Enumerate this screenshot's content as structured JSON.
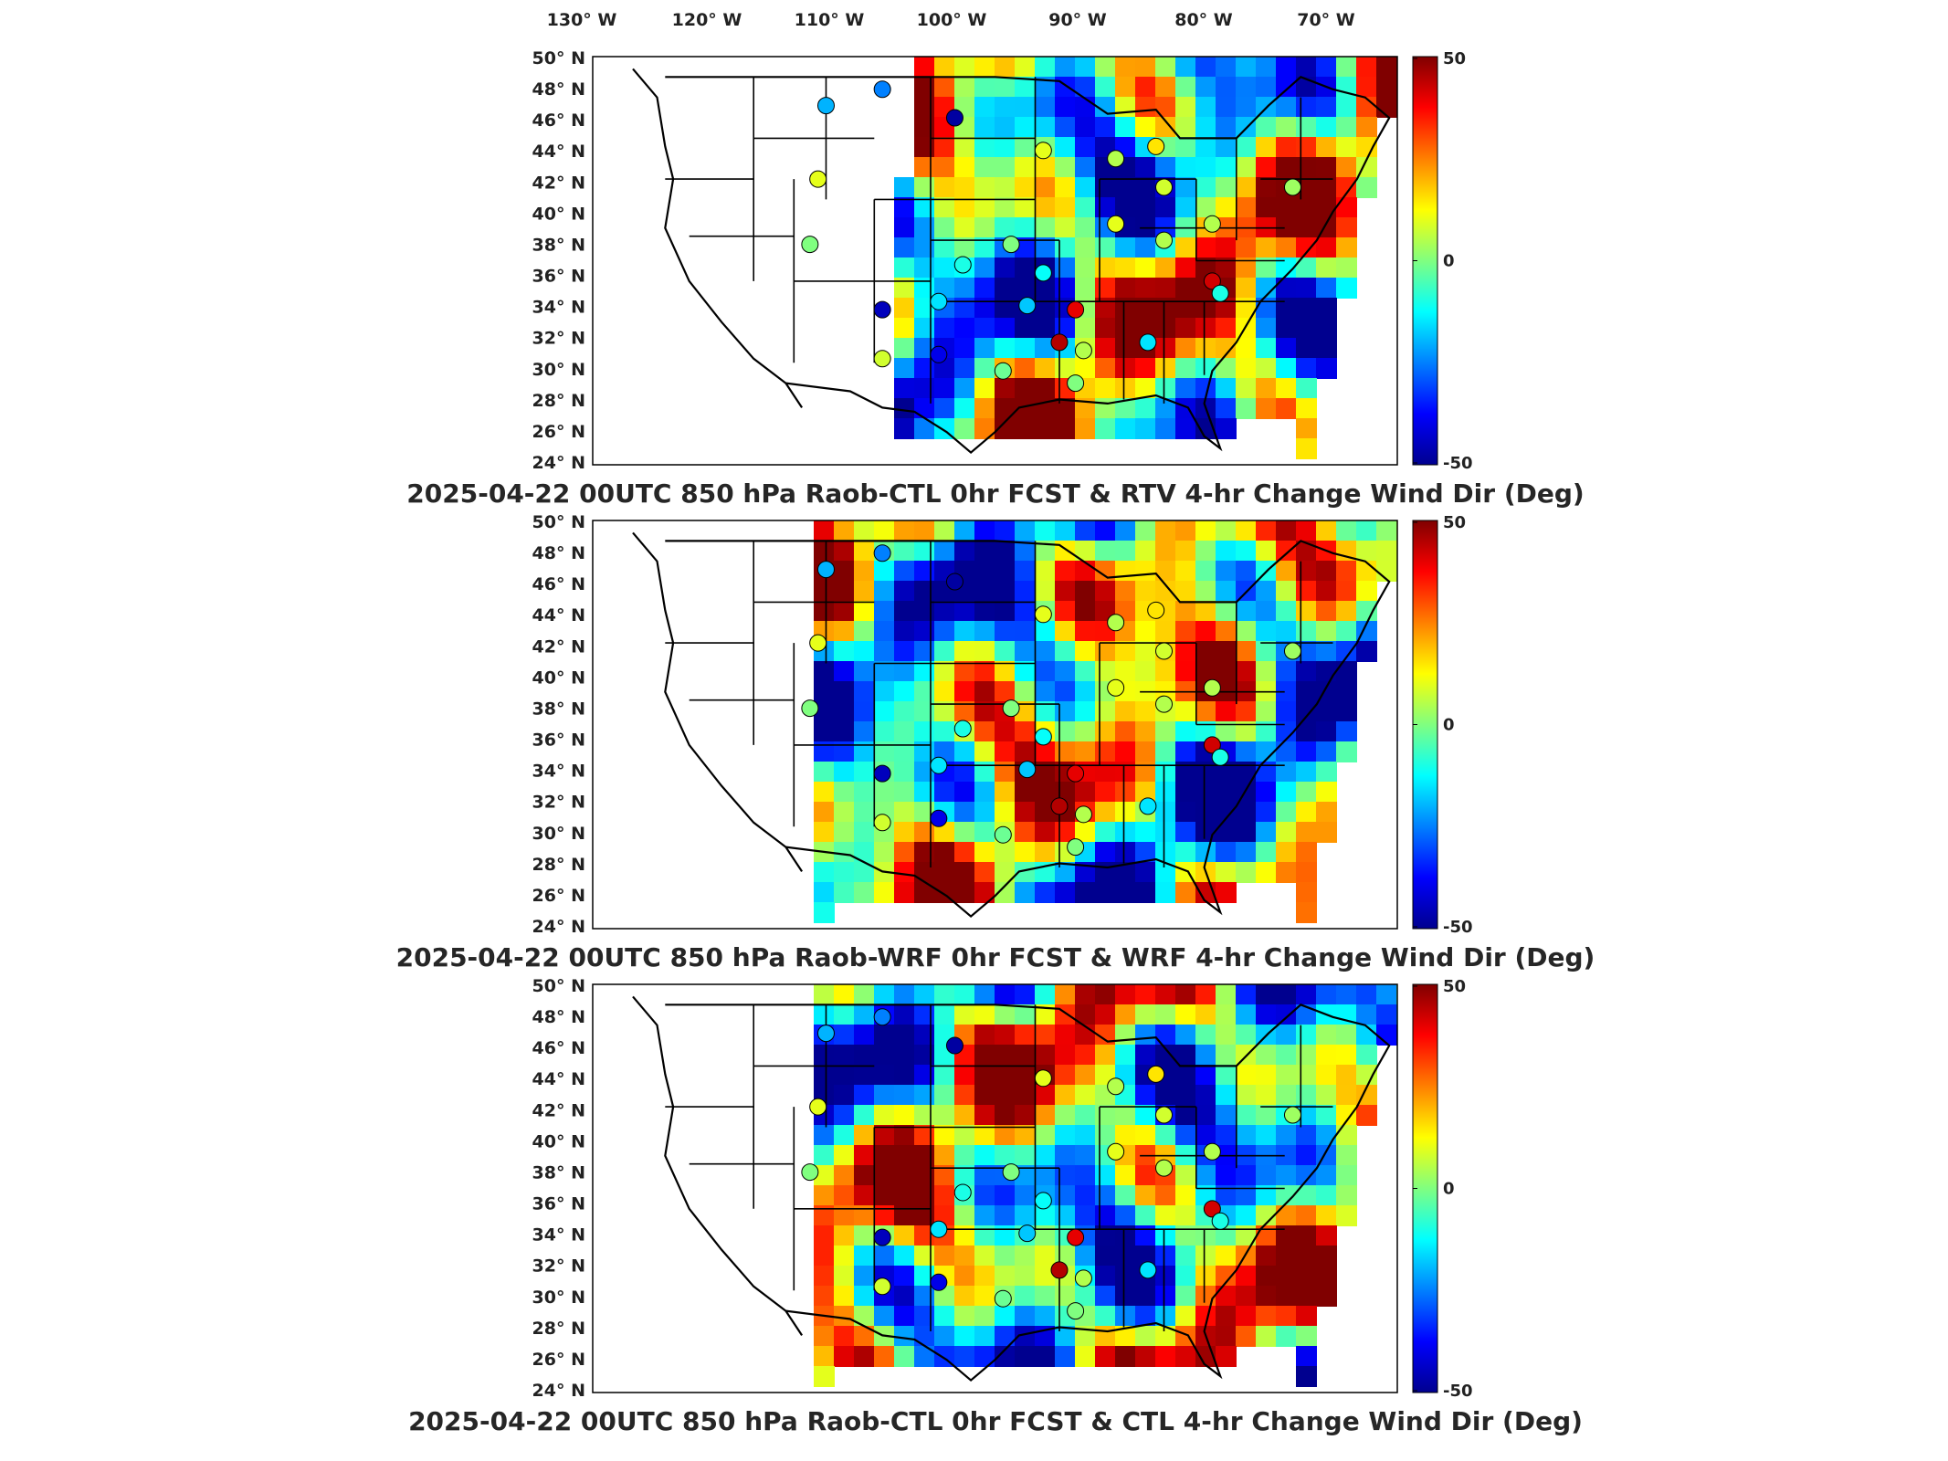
{
  "chart_data": [
    {
      "type": "heatmap",
      "title": "2025-04-22 00UTC 850 hPa Raob-CTL 0hr FCST & RTV 4-hr Change Wind Dir (Deg)",
      "xlabel": "",
      "ylabel": "",
      "x_ticks": [
        "130° W",
        "120° W",
        "110° W",
        "100° W",
        "90° W",
        "80° W",
        "70° W"
      ],
      "y_ticks": [
        "50° N",
        "48° N",
        "46° N",
        "44° N",
        "42° N",
        "40° N",
        "38° N",
        "36° N",
        "34° N",
        "32° N",
        "30° N",
        "28° N",
        "26° N",
        "24° N"
      ],
      "colorbar": {
        "min": -50,
        "max": 50,
        "ticks": [
          "50",
          "0",
          "-50"
        ],
        "colormap": "jet"
      },
      "grid": false
    },
    {
      "type": "heatmap",
      "title": "2025-04-22 00UTC 850 hPa Raob-WRF 0hr FCST & WRF 4-hr Change Wind Dir (Deg)",
      "xlabel": "",
      "ylabel": "",
      "y_ticks": [
        "50° N",
        "48° N",
        "46° N",
        "44° N",
        "42° N",
        "40° N",
        "38° N",
        "36° N",
        "34° N",
        "32° N",
        "30° N",
        "28° N",
        "26° N",
        "24° N"
      ],
      "colorbar": {
        "min": -50,
        "max": 50,
        "ticks": [
          "50",
          "0",
          "-50"
        ],
        "colormap": "jet"
      },
      "grid": false
    },
    {
      "type": "heatmap",
      "title": "2025-04-22 00UTC 850 hPa Raob-CTL 0hr FCST & CTL 4-hr Change Wind Dir (Deg)",
      "xlabel": "",
      "ylabel": "",
      "y_ticks": [
        "50° N",
        "48° N",
        "46° N",
        "44° N",
        "42° N",
        "40° N",
        "38° N",
        "36° N",
        "34° N",
        "32° N",
        "30° N",
        "28° N",
        "26° N",
        "24° N"
      ],
      "colorbar": {
        "min": -50,
        "max": 50,
        "ticks": [
          "50",
          "0",
          "-50"
        ],
        "colormap": "jet"
      },
      "grid": false
    }
  ],
  "colors": {
    "frame": "#000000",
    "map_lines": "#000000",
    "background": "#ffffff"
  }
}
